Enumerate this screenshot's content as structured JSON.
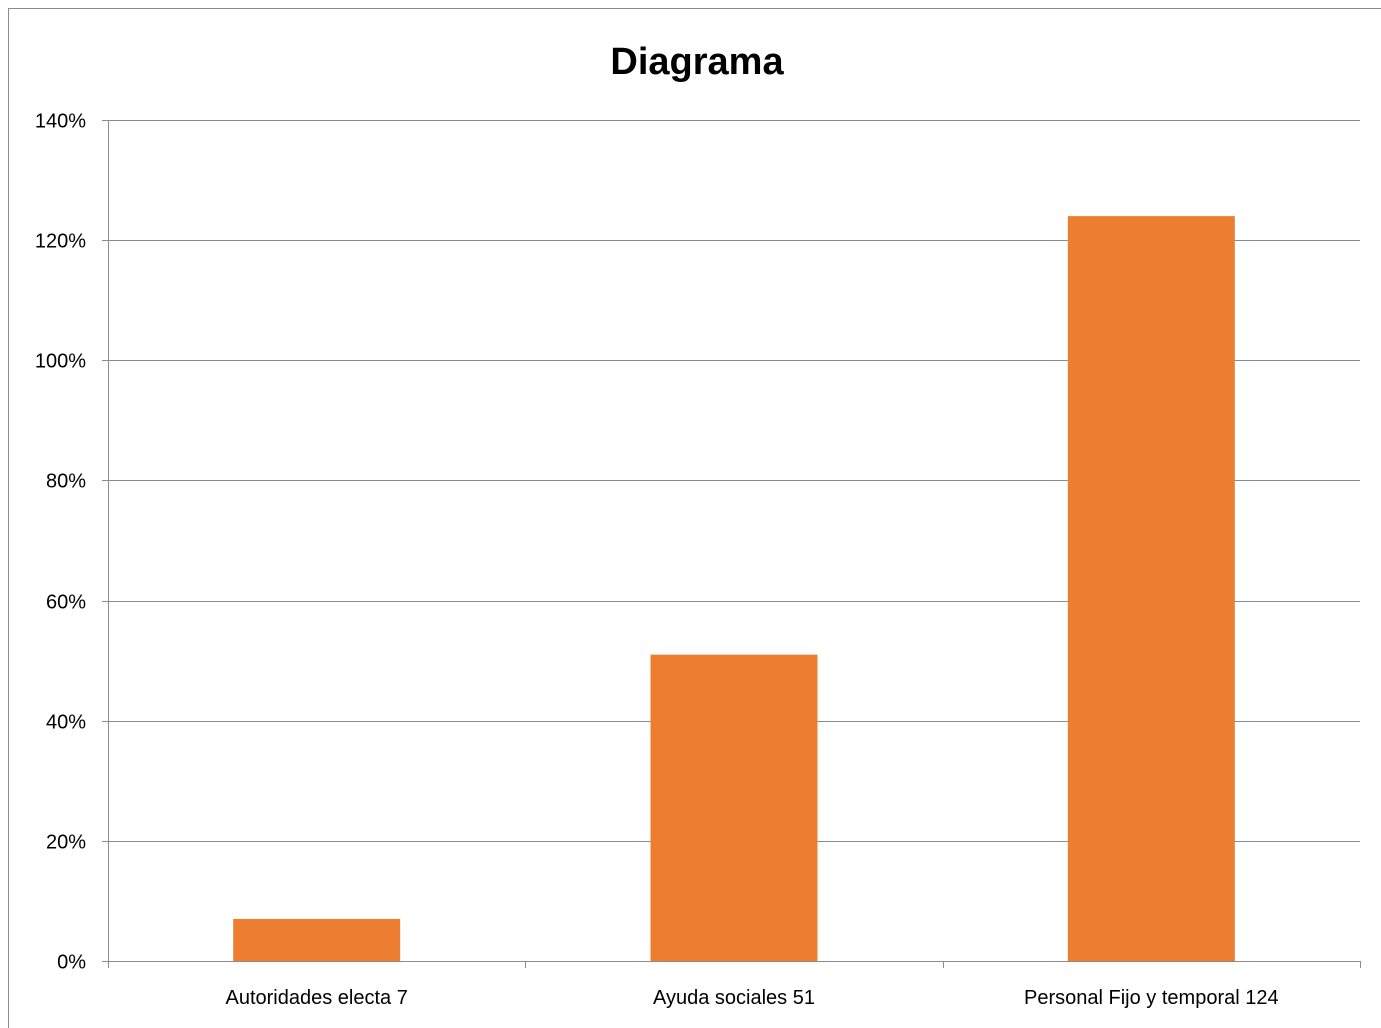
{
  "chart_data": {
    "type": "bar",
    "title": "Diagrama",
    "categories": [
      "Autoridades electa 7",
      "Ayuda sociales 51",
      "Personal Fijo y temporal 124"
    ],
    "values": [
      7,
      51,
      124
    ],
    "value_unit": "%",
    "xlabel": "",
    "ylabel": "",
    "ylim": [
      0,
      140
    ],
    "yticks": [
      "0%",
      "20%",
      "40%",
      "60%",
      "80%",
      "100%",
      "120%",
      "140%"
    ],
    "grid": true,
    "legend": "none",
    "bar_color": "#ed7d31"
  }
}
